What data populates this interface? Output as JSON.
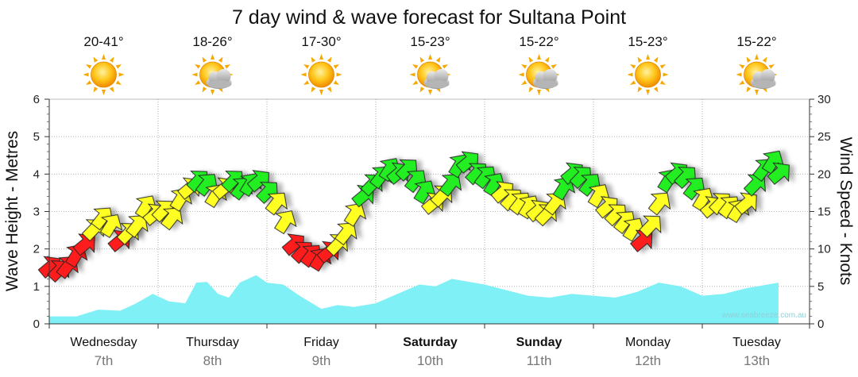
{
  "chart_data": {
    "type": "area",
    "title": "7 day wind & wave forecast for Sultana Point",
    "ylabel_left": "Wave Height - Metres",
    "ylabel_right": "Wind Speed - Knots",
    "y_left_range": [
      0,
      6
    ],
    "y_right_range": [
      0,
      30
    ],
    "y_left_ticks": [
      "0",
      "1",
      "2",
      "3",
      "4",
      "5",
      "6"
    ],
    "y_right_ticks": [
      "0",
      "5",
      "10",
      "15",
      "20",
      "25",
      "30"
    ],
    "grid": true,
    "watermark": "www.seabreeze.com.au",
    "days": [
      {
        "day": "Wednesday",
        "date": "7th",
        "temp": "20-41°",
        "weather": "sun-icon",
        "bold": false
      },
      {
        "day": "Thursday",
        "date": "8th",
        "temp": "18-26°",
        "weather": "sun-cloud-icon",
        "bold": false
      },
      {
        "day": "Friday",
        "date": "9th",
        "temp": "17-30°",
        "weather": "sun-icon",
        "bold": false
      },
      {
        "day": "Saturday",
        "date": "10th",
        "temp": "15-23°",
        "weather": "sun-cloud-icon",
        "bold": true
      },
      {
        "day": "Sunday",
        "date": "11th",
        "temp": "15-22°",
        "weather": "sun-cloud-icon",
        "bold": true
      },
      {
        "day": "Monday",
        "date": "12th",
        "temp": "15-23°",
        "weather": "sun-icon",
        "bold": false
      },
      {
        "day": "Tuesday",
        "date": "13th",
        "temp": "15-22°",
        "weather": "sun-cloud-icon",
        "bold": false
      }
    ],
    "wave_series": {
      "name": "",
      "color": "#7ff0f5",
      "points": [
        [
          0,
          0.2
        ],
        [
          0.25,
          0.2
        ],
        [
          0.45,
          0.38
        ],
        [
          0.65,
          0.35
        ],
        [
          0.8,
          0.55
        ],
        [
          0.95,
          0.8
        ],
        [
          1.1,
          0.6
        ],
        [
          1.25,
          0.55
        ],
        [
          1.35,
          1.1
        ],
        [
          1.45,
          1.12
        ],
        [
          1.55,
          0.8
        ],
        [
          1.65,
          0.7
        ],
        [
          1.75,
          1.1
        ],
        [
          1.9,
          1.3
        ],
        [
          2.0,
          1.1
        ],
        [
          2.15,
          1.05
        ],
        [
          2.3,
          0.75
        ],
        [
          2.5,
          0.4
        ],
        [
          2.65,
          0.5
        ],
        [
          2.8,
          0.45
        ],
        [
          3.0,
          0.55
        ],
        [
          3.2,
          0.8
        ],
        [
          3.4,
          1.05
        ],
        [
          3.55,
          1.0
        ],
        [
          3.7,
          1.2
        ],
        [
          3.9,
          1.1
        ],
        [
          4.0,
          1.05
        ],
        [
          4.2,
          0.9
        ],
        [
          4.4,
          0.75
        ],
        [
          4.6,
          0.7
        ],
        [
          4.8,
          0.8
        ],
        [
          5.0,
          0.75
        ],
        [
          5.2,
          0.7
        ],
        [
          5.4,
          0.85
        ],
        [
          5.6,
          1.1
        ],
        [
          5.8,
          1.0
        ],
        [
          6.0,
          0.75
        ],
        [
          6.2,
          0.8
        ],
        [
          6.4,
          0.95
        ],
        [
          6.6,
          1.05
        ],
        [
          6.7,
          1.1
        ]
      ]
    },
    "wind_series": {
      "name": "",
      "unit": "knots",
      "color_scale": {
        "low": "#ff1a1a",
        "mid": "#ffff22",
        "high": "#22ee22"
      },
      "points": [
        [
          0.0,
          7.5,
          0
        ],
        [
          0.08,
          7.0,
          0
        ],
        [
          0.16,
          7.5,
          0
        ],
        [
          0.24,
          9.0,
          0
        ],
        [
          0.32,
          10.5,
          0
        ],
        [
          0.4,
          12.5,
          1
        ],
        [
          0.48,
          14.0,
          1
        ],
        [
          0.56,
          13.0,
          1
        ],
        [
          0.64,
          11.0,
          0
        ],
        [
          0.72,
          12.0,
          1
        ],
        [
          0.8,
          13.0,
          1
        ],
        [
          0.88,
          15.5,
          1
        ],
        [
          0.96,
          14.5,
          1
        ],
        [
          1.04,
          15.0,
          1
        ],
        [
          1.12,
          14.0,
          1
        ],
        [
          1.2,
          16.5,
          1
        ],
        [
          1.28,
          18.0,
          1
        ],
        [
          1.36,
          19.0,
          2
        ],
        [
          1.44,
          18.5,
          2
        ],
        [
          1.52,
          17.0,
          1
        ],
        [
          1.6,
          18.0,
          1
        ],
        [
          1.68,
          19.0,
          2
        ],
        [
          1.76,
          18.0,
          2
        ],
        [
          1.84,
          18.5,
          2
        ],
        [
          1.92,
          19.0,
          2
        ],
        [
          2.0,
          17.5,
          2
        ],
        [
          2.08,
          16.0,
          1
        ],
        [
          2.16,
          13.5,
          1
        ],
        [
          2.24,
          10.5,
          0
        ],
        [
          2.32,
          9.5,
          0
        ],
        [
          2.4,
          9.0,
          0
        ],
        [
          2.48,
          8.5,
          0
        ],
        [
          2.56,
          9.5,
          0
        ],
        [
          2.64,
          10.5,
          1
        ],
        [
          2.72,
          12.0,
          1
        ],
        [
          2.8,
          14.5,
          1
        ],
        [
          2.88,
          17.0,
          2
        ],
        [
          2.96,
          18.5,
          2
        ],
        [
          3.04,
          19.5,
          2
        ],
        [
          3.12,
          20.5,
          2
        ],
        [
          3.2,
          20.0,
          2
        ],
        [
          3.28,
          20.5,
          2
        ],
        [
          3.36,
          19.0,
          2
        ],
        [
          3.44,
          17.5,
          2
        ],
        [
          3.52,
          16.0,
          1
        ],
        [
          3.6,
          17.0,
          1
        ],
        [
          3.68,
          18.5,
          2
        ],
        [
          3.76,
          21.0,
          2
        ],
        [
          3.84,
          21.5,
          2
        ],
        [
          3.92,
          20.0,
          2
        ],
        [
          4.0,
          19.5,
          2
        ],
        [
          4.08,
          18.5,
          2
        ],
        [
          4.16,
          17.5,
          1
        ],
        [
          4.24,
          16.5,
          1
        ],
        [
          4.32,
          16.0,
          1
        ],
        [
          4.4,
          15.5,
          1
        ],
        [
          4.48,
          15.0,
          1
        ],
        [
          4.56,
          14.5,
          1
        ],
        [
          4.64,
          16.0,
          1
        ],
        [
          4.72,
          18.0,
          2
        ],
        [
          4.8,
          20.0,
          2
        ],
        [
          4.88,
          19.5,
          2
        ],
        [
          4.96,
          18.5,
          2
        ],
        [
          5.04,
          17.0,
          1
        ],
        [
          5.12,
          15.5,
          1
        ],
        [
          5.2,
          14.5,
          1
        ],
        [
          5.28,
          13.5,
          1
        ],
        [
          5.36,
          12.5,
          1
        ],
        [
          5.44,
          11.0,
          0
        ],
        [
          5.52,
          13.0,
          1
        ],
        [
          5.6,
          16.0,
          1
        ],
        [
          5.68,
          19.0,
          2
        ],
        [
          5.76,
          20.0,
          2
        ],
        [
          5.84,
          19.5,
          2
        ],
        [
          5.92,
          18.0,
          2
        ],
        [
          6.0,
          16.5,
          1
        ],
        [
          6.08,
          15.5,
          1
        ],
        [
          6.16,
          16.0,
          1
        ],
        [
          6.24,
          15.5,
          1
        ],
        [
          6.32,
          15.0,
          1
        ],
        [
          6.4,
          16.0,
          1
        ],
        [
          6.48,
          18.5,
          2
        ],
        [
          6.56,
          20.5,
          2
        ],
        [
          6.64,
          21.5,
          2
        ],
        [
          6.7,
          20.0,
          2
        ]
      ]
    }
  }
}
